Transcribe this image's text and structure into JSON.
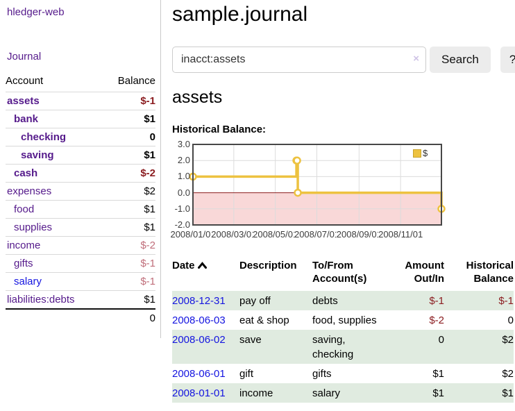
{
  "app": {
    "brand": "hledger-web",
    "nav_journal": "Journal"
  },
  "sidebar": {
    "header": {
      "account": "Account",
      "balance": "Balance"
    },
    "accounts": [
      {
        "name": "assets",
        "balance": "$-1",
        "indent": 0,
        "bold": true,
        "name_color": "purple",
        "balance_class": "neg-strong"
      },
      {
        "name": "bank",
        "balance": "$1",
        "indent": 1,
        "bold": true,
        "name_color": "purple",
        "balance_class": ""
      },
      {
        "name": "checking",
        "balance": "0",
        "indent": 2,
        "bold": true,
        "name_color": "purple",
        "balance_class": ""
      },
      {
        "name": "saving",
        "balance": "$1",
        "indent": 2,
        "bold": true,
        "name_color": "purple",
        "balance_class": ""
      },
      {
        "name": "cash",
        "balance": "$-2",
        "indent": 1,
        "bold": true,
        "name_color": "purple",
        "balance_class": "neg-strong"
      },
      {
        "name": "expenses",
        "balance": "$2",
        "indent": 0,
        "bold": false,
        "name_color": "purple",
        "balance_class": ""
      },
      {
        "name": "food",
        "balance": "$1",
        "indent": 1,
        "bold": false,
        "name_color": "purple",
        "balance_class": ""
      },
      {
        "name": "supplies",
        "balance": "$1",
        "indent": 1,
        "bold": false,
        "name_color": "purple",
        "balance_class": ""
      },
      {
        "name": "income",
        "balance": "$-2",
        "indent": 0,
        "bold": false,
        "name_color": "purple",
        "balance_class": "neg-soft"
      },
      {
        "name": "gifts",
        "balance": "$-1",
        "indent": 1,
        "bold": false,
        "name_color": "purple",
        "balance_class": "neg-soft"
      },
      {
        "name": "salary",
        "balance": "$-1",
        "indent": 1,
        "bold": false,
        "name_color": "blue",
        "balance_class": "neg-soft"
      },
      {
        "name": "liabilities:debts",
        "balance": "$1",
        "indent": 0,
        "bold": false,
        "name_color": "purple",
        "balance_class": ""
      }
    ],
    "total": "0"
  },
  "main": {
    "title": "sample.journal",
    "account_heading": "assets"
  },
  "search": {
    "value": "inacct:assets",
    "clear": "×",
    "button": "Search",
    "help": "?"
  },
  "chart_data": {
    "type": "line",
    "step": true,
    "title": "Historical Balance:",
    "legend": "$",
    "legend_position": "top-right",
    "grid": "on",
    "x_start": "2008-01-01",
    "x_end": "2008-12-31",
    "points": [
      [
        "2008-01-01",
        1
      ],
      [
        "2008-06-01",
        2
      ],
      [
        "2008-06-02",
        2
      ],
      [
        "2008-06-03",
        0
      ],
      [
        "2008-12-31",
        -1
      ]
    ],
    "ylim": [
      -2,
      3
    ],
    "y_ticks": [
      {
        "label": "3.0",
        "value": 3
      },
      {
        "label": "2.0",
        "value": 2
      },
      {
        "label": "1.0",
        "value": 1
      },
      {
        "label": "0.0",
        "value": 0
      },
      {
        "label": "-1.0",
        "value": -1
      },
      {
        "label": "-2.0",
        "value": -2
      }
    ],
    "x_ticks": [
      "2008/01/01",
      "2008/03/01",
      "2008/05/01",
      "2008/07/01",
      "2008/09/01",
      "2008/11/01"
    ],
    "colors": {
      "series": "#edc240",
      "marker_fill": "#ffffff",
      "negative_region": "#f9d8d8",
      "zero_line": "#8b1d1d",
      "grid": "#dcdcdc",
      "border": "#474747"
    }
  },
  "transactions": {
    "columns": [
      {
        "label": "Date",
        "align": "left",
        "sorted": "asc"
      },
      {
        "label": "Description",
        "align": "left"
      },
      {
        "label": "To/From Account(s)",
        "align": "left"
      },
      {
        "label": "Amount Out/In",
        "align": "right"
      },
      {
        "label": "Historical Balance",
        "align": "right"
      }
    ],
    "rows": [
      {
        "date": "2008-12-31",
        "description": "pay off",
        "accounts": "debts",
        "amount": "$-1",
        "amount_neg": true,
        "balance": "$-1",
        "balance_neg": true
      },
      {
        "date": "2008-06-03",
        "description": "eat & shop",
        "accounts": "food, supplies",
        "amount": "$-2",
        "amount_neg": true,
        "balance": "0",
        "balance_neg": false
      },
      {
        "date": "2008-06-02",
        "description": "save",
        "accounts": "saving, checking",
        "amount": "0",
        "amount_neg": false,
        "balance": "$2",
        "balance_neg": false
      },
      {
        "date": "2008-06-01",
        "description": "gift",
        "accounts": "gifts",
        "amount": "$1",
        "amount_neg": false,
        "balance": "$2",
        "balance_neg": false
      },
      {
        "date": "2008-01-01",
        "description": "income",
        "accounts": "salary",
        "amount": "$1",
        "amount_neg": false,
        "balance": "$1",
        "balance_neg": false
      }
    ]
  }
}
